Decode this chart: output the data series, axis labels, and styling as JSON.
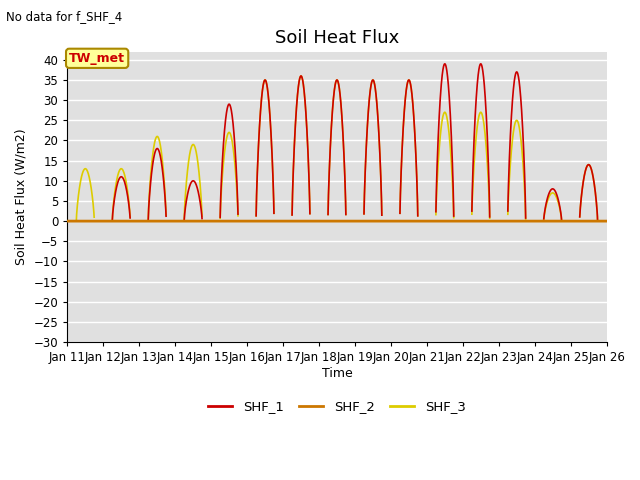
{
  "title": "Soil Heat Flux",
  "no_data_text": "No data for f_SHF_4",
  "tw_met_label": "TW_met",
  "xlabel": "Time",
  "ylabel": "Soil Heat Flux (W/m2)",
  "ylim": [
    -30,
    42
  ],
  "yticks": [
    -30,
    -25,
    -20,
    -15,
    -10,
    -5,
    0,
    5,
    10,
    15,
    20,
    25,
    30,
    35,
    40
  ],
  "x_start_day": 11,
  "x_end_day": 26,
  "x_tick_days": [
    11,
    12,
    13,
    14,
    15,
    16,
    17,
    18,
    19,
    20,
    21,
    22,
    23,
    24,
    25,
    26
  ],
  "line_colors": {
    "SHF_1": "#cc0000",
    "SHF_2": "#cc7700",
    "SHF_3": "#ddcc00"
  },
  "line_widths": {
    "SHF_1": 1.2,
    "SHF_2": 2.0,
    "SHF_3": 1.2
  },
  "legend_entries": [
    "SHF_1",
    "SHF_2",
    "SHF_3"
  ],
  "plot_bg_color": "#e0e0e0",
  "fig_bg_color": "#ffffff",
  "grid_color": "#ffffff",
  "title_fontsize": 13,
  "label_fontsize": 9,
  "tick_fontsize": 8.5
}
